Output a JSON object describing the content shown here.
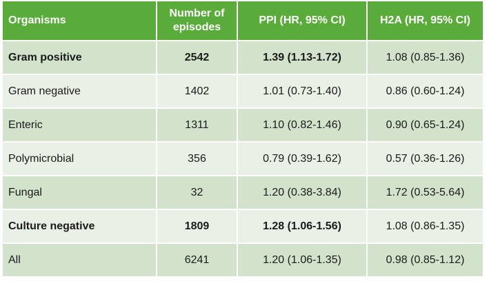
{
  "table": {
    "header": [
      "Organisms",
      "Number of episodes",
      "PPI (HR, 95% CI)",
      "H2A (HR, 95% CI)"
    ],
    "rows": [
      [
        "Gram positive",
        "2542",
        "1.39 (1.13-1.72)",
        "1.08 (0.85-1.36)"
      ],
      [
        "Gram negative",
        "1402",
        "1.01 (0.73-1.40)",
        "0.86 (0.60-1.24)"
      ],
      [
        "Enteric",
        "1311",
        "1.10 (0.82-1.46)",
        "0.90 (0.65-1.24)"
      ],
      [
        "Polymicrobial",
        "356",
        "0.79 (0.39-1.62)",
        "0.57 (0.36-1.26)"
      ],
      [
        "Fungal",
        "32",
        "1.20 (0.38-3.84)",
        "1.72 (0.53-5.64)"
      ],
      [
        "Culture negative",
        "1809",
        "1.28 (1.06-1.56)",
        "1.08 (0.86-1.35)"
      ],
      [
        "All",
        "6241",
        "1.20 (1.06-1.35)",
        "0.98 (0.85-1.12)"
      ]
    ]
  }
}
